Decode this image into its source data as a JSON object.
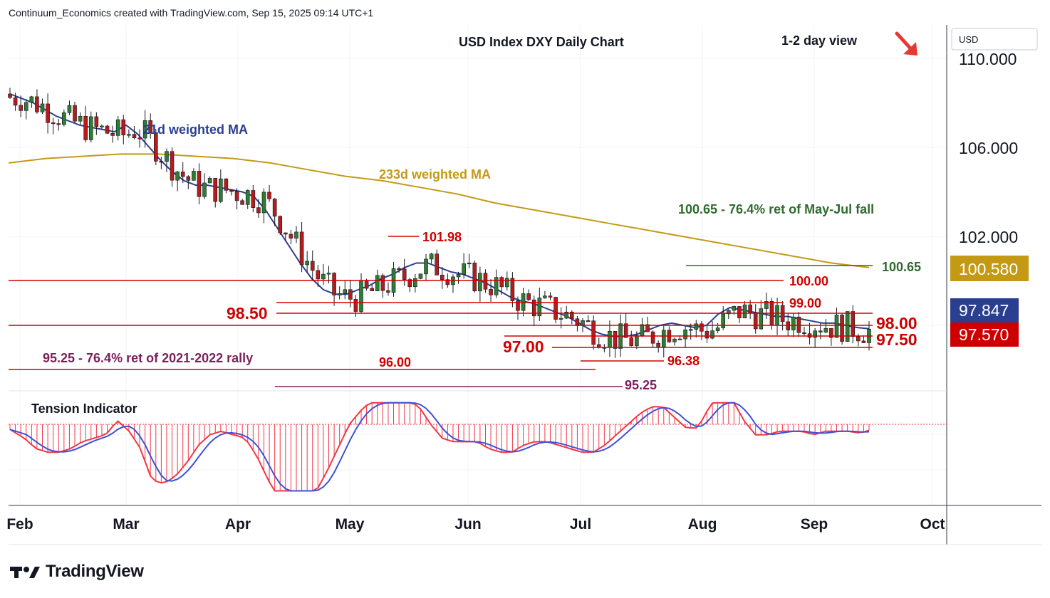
{
  "header": {
    "attribution": "Continuum_Economics created with TradingView.com, Sep 15, 2025 09:14 UTC+1"
  },
  "chart": {
    "title": "USD Index DXY Daily Chart",
    "view_label": "1-2 day view",
    "currency": "USD",
    "colors": {
      "up": "#2e7d32",
      "down": "#b71c1c",
      "ma21": "#2a3f8f",
      "ma233": "#c49a14",
      "level": "#d00000",
      "fib": "#2e6b2e",
      "osc_fast": "#f23645",
      "osc_slow": "#3f51d6"
    }
  },
  "chart_data": {
    "type": "candlestick",
    "y_axis_ticks": [
      "110.000",
      "106.000",
      "102.000"
    ],
    "x_axis_ticks": [
      "Feb",
      "Mar",
      "Apr",
      "May",
      "Jun",
      "Jul",
      "Aug",
      "Sep",
      "Oct"
    ],
    "ylim": [
      95.0,
      111.0
    ],
    "series": [
      {
        "name": "21d weighted MA",
        "values": [
          108.4,
          108.2,
          108.0,
          107.7,
          107.4,
          107.2,
          107.0,
          106.9,
          106.8,
          106.7,
          107.0,
          106.6,
          106.0,
          105.4,
          104.9,
          104.5,
          104.3,
          104.3,
          104.2,
          104.1,
          104.0,
          103.8,
          103.2,
          102.4,
          101.6,
          100.8,
          100.1,
          99.6,
          99.4,
          99.4,
          99.6,
          99.8,
          100.1,
          100.3,
          100.6,
          100.8,
          100.8,
          100.6,
          100.4,
          100.3,
          100.1,
          99.9,
          99.6,
          99.3,
          99.1,
          99.0,
          98.8,
          98.6,
          98.4,
          98.1,
          97.8,
          97.6,
          97.5,
          97.5,
          97.6,
          97.8,
          98.0,
          98.1,
          98.0,
          97.9,
          98.0,
          98.5,
          98.8,
          98.7,
          98.6,
          98.5,
          98.4,
          98.4,
          98.3,
          98.2,
          98.1,
          98.1,
          98.0,
          97.9,
          97.85
        ]
      },
      {
        "name": "233d weighted MA",
        "values": [
          105.3,
          105.5,
          105.6,
          105.7,
          105.7,
          105.6,
          105.5,
          105.3,
          105.0,
          104.7,
          104.5,
          104.2,
          103.9,
          103.5,
          103.2,
          102.9,
          102.6,
          102.3,
          102.0,
          101.7,
          101.4,
          101.1,
          100.8,
          100.6
        ]
      }
    ],
    "levels": [
      {
        "value": "101.98"
      },
      {
        "value": "100.65"
      },
      {
        "value": "100.00"
      },
      {
        "value": "99.00"
      },
      {
        "value": "98.50"
      },
      {
        "value": "98.00"
      },
      {
        "value": "97.50"
      },
      {
        "value": "97.00"
      },
      {
        "value": "96.38"
      },
      {
        "value": "96.00"
      },
      {
        "value": "95.25"
      }
    ],
    "annotations": {
      "ma21_label": "21d weighted MA",
      "ma233_label": "233d weighted MA",
      "fib_label": "100.65 - 76.4% ret of May-Jul fall",
      "ret_label": "95.25 - 76.4% ret of 2021-2022 rally",
      "osc_label": "Tension Indicator"
    },
    "price_badges": {
      "ma233": "100.580",
      "ma21": "97.847",
      "last": "97.570"
    }
  }
}
